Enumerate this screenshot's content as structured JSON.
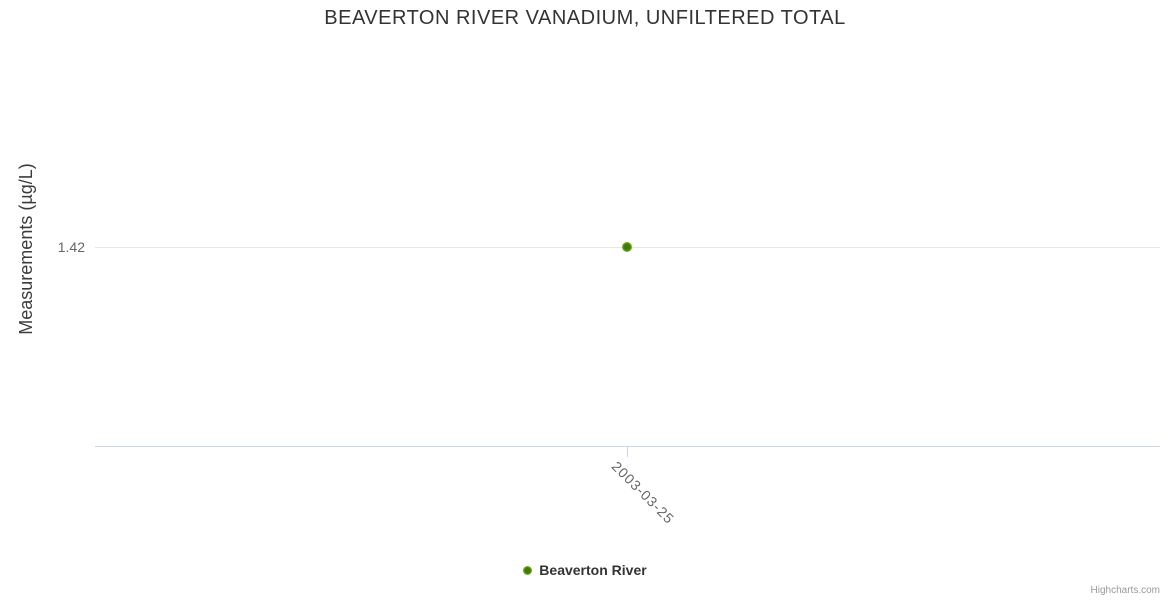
{
  "chart_data": {
    "type": "scatter",
    "title": "BEAVERTON RIVER VANADIUM, UNFILTERED TOTAL",
    "xlabel": "",
    "ylabel": "Measurements (µg/L)",
    "x_ticks": [
      "2003-03-25"
    ],
    "y_ticks": [
      "1.42"
    ],
    "series": [
      {
        "name": "Beaverton River",
        "color": "#7db41c",
        "points": [
          {
            "x": "2003-03-25",
            "y": 1.42
          }
        ]
      }
    ],
    "legend_position": "bottom-center",
    "grid": "single horizontal gridline at y=1.42",
    "axis_line_color": "#ccd6eb",
    "gridline_color": "#e6e6e6"
  },
  "credit": "Highcharts.com"
}
